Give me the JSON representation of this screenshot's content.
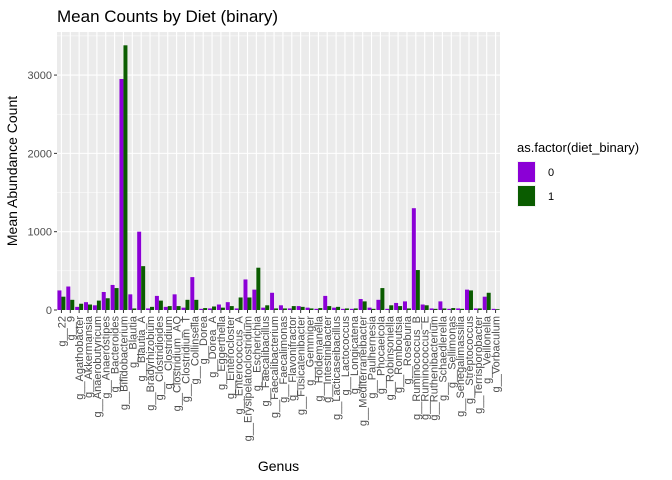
{
  "chart_data": {
    "type": "bar",
    "title": "Mean Counts by Diet (binary)",
    "xlabel": "Genus",
    "ylabel": "Mean Abundance Count",
    "ylim": [
      0,
      3550
    ],
    "yticks": [
      0,
      1000,
      2000,
      3000
    ],
    "grid": true,
    "legend": {
      "title": "as.factor(diet_binary)",
      "placement": "right"
    },
    "categories": [
      "g__22",
      "g__9",
      "g__Agathobacter",
      "g__Akkermansia",
      "g__Anaerobutyricum",
      "g__Anaerostipes",
      "g__Bacteroides",
      "g__Bifidobacterium",
      "g__Blautia",
      "g__Blautia_A",
      "g__Bradyrhizobium",
      "g__Clostridioides",
      "g__Clostridium",
      "g__Clostridium_AQ",
      "g__Clostridium_T",
      "g__Collinsella",
      "g__Dorea",
      "g__Dorea_A",
      "g__Eggerthella",
      "g__Enterocloster",
      "g__Enterococcus_A",
      "g__Erysipelatoclostridium",
      "g__Escherichia",
      "g__Faecalibacillus",
      "g__Faecalibacterium",
      "g__Faecalimonas",
      "g__Flavonifractor",
      "g__Fusicatenibacter",
      "g__Gemmiger",
      "g__Holdemanella",
      "g__Intestinibacter",
      "g__Lacticaseibacillus",
      "g__Lactococcus",
      "g__Longicatena",
      "g__Mediterraneibacter",
      "g__Paulhernesia",
      "g__Phocaeicola",
      "g__Robinsoniella",
      "g__Romboutsia",
      "g__Roseburia",
      "g__Ruminococcus_B",
      "g__Ruminococcus_E",
      "g__Ruthenibacterium",
      "g__Schaedlerella",
      "g__Sellimonas",
      "g__Senegalimassilia",
      "g__Streptococcus",
      "g__Terrisporobacter",
      "g__Veillonella",
      "g__Vorbaculum"
    ],
    "series": [
      {
        "name": "0",
        "color": "#8b00d6",
        "values": [
          250,
          300,
          40,
          100,
          60,
          230,
          320,
          2950,
          200,
          1000,
          20,
          180,
          40,
          200,
          30,
          420,
          15,
          20,
          70,
          100,
          20,
          390,
          260,
          30,
          220,
          60,
          20,
          50,
          30,
          15,
          180,
          30,
          15,
          15,
          140,
          30,
          130,
          15,
          90,
          110,
          1300,
          70,
          20,
          110,
          15,
          20,
          260,
          20,
          170,
          15
        ]
      },
      {
        "name": "1",
        "color": "#0a5c00",
        "values": [
          170,
          130,
          80,
          70,
          120,
          150,
          280,
          3380,
          20,
          560,
          40,
          120,
          50,
          50,
          130,
          130,
          25,
          45,
          30,
          50,
          160,
          160,
          540,
          60,
          20,
          20,
          50,
          40,
          20,
          25,
          50,
          40,
          20,
          20,
          110,
          15,
          280,
          60,
          50,
          20,
          510,
          60,
          15,
          20,
          25,
          15,
          250,
          20,
          220,
          10
        ]
      }
    ]
  }
}
